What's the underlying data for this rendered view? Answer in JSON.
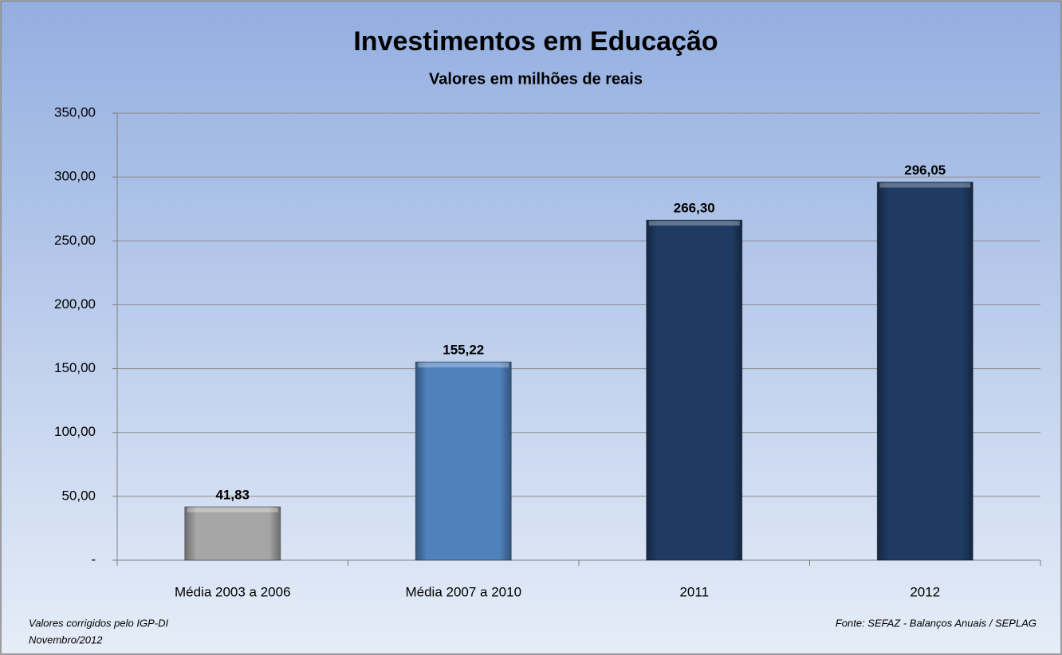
{
  "chart_data": {
    "type": "bar",
    "title": "Investimentos em Educação",
    "subtitle": "Valores em milhões de reais",
    "categories": [
      "Média 2003 a 2006",
      "Média 2007 a 2010",
      "2011",
      "2012"
    ],
    "values": [
      41.83,
      155.22,
      266.3,
      296.05
    ],
    "value_labels": [
      "41,83",
      "155,22",
      "266,30",
      "296,05"
    ],
    "colors": [
      "#a6a6a6",
      "#4f81bd",
      "#1f3b63",
      "#1f3b63"
    ],
    "ylim": [
      0,
      350
    ],
    "yticks": [
      {
        "value": 0,
        "label": "-"
      },
      {
        "value": 50,
        "label": "50,00"
      },
      {
        "value": 100,
        "label": "100,00"
      },
      {
        "value": 150,
        "label": "150,00"
      },
      {
        "value": 200,
        "label": "200,00"
      },
      {
        "value": 250,
        "label": "250,00"
      },
      {
        "value": 300,
        "label": "300,00"
      },
      {
        "value": 350,
        "label": "350,00"
      }
    ],
    "grid": true,
    "footnotes": [
      "Valores corrigidos pelo IGP-DI",
      "Novembro/2012"
    ],
    "source": "Fonte: SEFAZ - Balanços Anuais / SEPLAG"
  }
}
